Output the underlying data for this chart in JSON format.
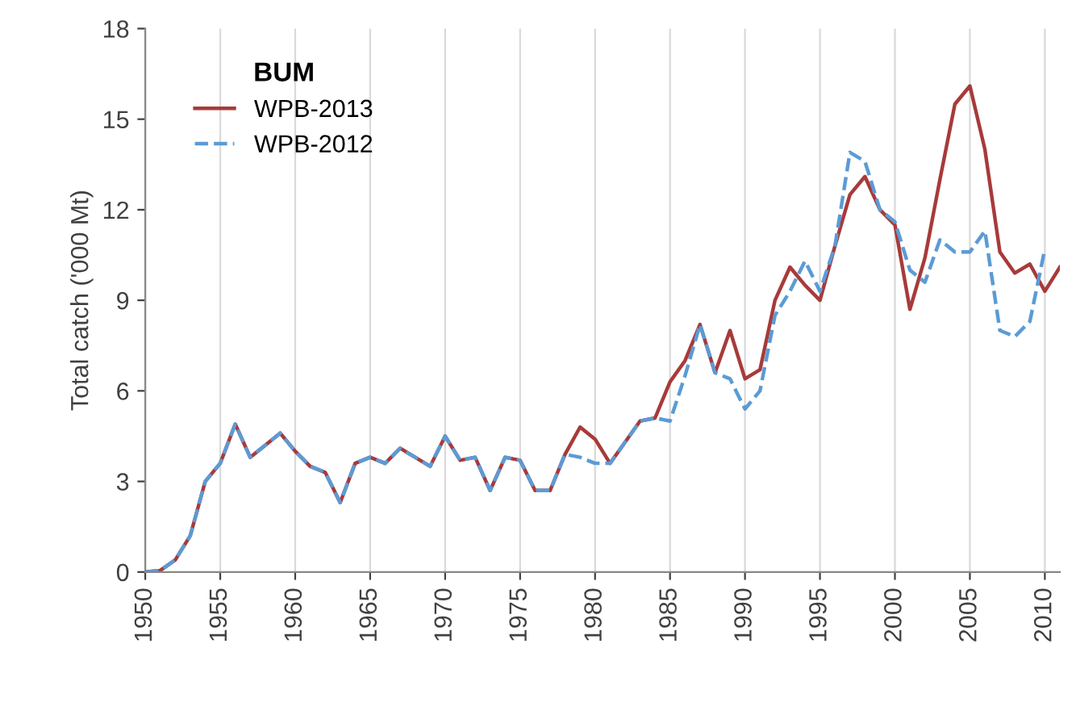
{
  "chart_data": {
    "type": "line",
    "legend_title": "BUM",
    "ylabel": "Total catch ('000 Mt)",
    "x": [
      1950,
      1951,
      1952,
      1953,
      1954,
      1955,
      1956,
      1957,
      1958,
      1959,
      1960,
      1961,
      1962,
      1963,
      1964,
      1965,
      1966,
      1967,
      1968,
      1969,
      1970,
      1971,
      1972,
      1973,
      1974,
      1975,
      1976,
      1977,
      1978,
      1979,
      1980,
      1981,
      1982,
      1983,
      1984,
      1985,
      1986,
      1987,
      1988,
      1989,
      1990,
      1991,
      1992,
      1993,
      1994,
      1995,
      1996,
      1997,
      1998,
      1999,
      2000,
      2001,
      2002,
      2003,
      2004,
      2005,
      2006,
      2007,
      2008,
      2009,
      2010,
      2011
    ],
    "series": [
      {
        "name": "WPB-2013",
        "color": "#a83a3a",
        "line_style": "solid",
        "values": [
          0,
          0.05,
          0.4,
          1.2,
          3.0,
          3.6,
          4.9,
          3.8,
          4.2,
          4.6,
          4.0,
          3.5,
          3.3,
          2.3,
          3.6,
          3.8,
          3.6,
          4.1,
          3.8,
          3.5,
          4.5,
          3.7,
          3.8,
          2.7,
          3.8,
          3.7,
          2.7,
          2.7,
          3.9,
          4.8,
          4.4,
          3.6,
          4.3,
          5.0,
          5.1,
          6.3,
          7.0,
          8.2,
          6.6,
          8.0,
          6.4,
          6.7,
          9.0,
          10.1,
          9.5,
          9.0,
          10.8,
          12.5,
          13.1,
          12.0,
          11.5,
          8.7,
          10.4,
          13.0,
          15.5,
          16.1,
          14.0,
          10.6,
          9.9,
          10.2,
          9.3,
          10.1
        ]
      },
      {
        "name": "WPB-2012",
        "color": "#5b9bd5",
        "line_style": "dashed",
        "values": [
          0,
          0.05,
          0.4,
          1.2,
          3.0,
          3.6,
          4.9,
          3.8,
          4.2,
          4.6,
          4.0,
          3.5,
          3.3,
          2.3,
          3.6,
          3.8,
          3.6,
          4.1,
          3.8,
          3.5,
          4.5,
          3.7,
          3.8,
          2.7,
          3.8,
          3.7,
          2.7,
          2.7,
          3.9,
          3.8,
          3.6,
          3.6,
          4.3,
          5.0,
          5.1,
          5.0,
          6.5,
          8.2,
          6.6,
          6.4,
          5.4,
          6.0,
          8.5,
          9.3,
          10.3,
          9.3,
          10.8,
          13.9,
          13.6,
          12.0,
          11.6,
          10.0,
          9.6,
          11.0,
          10.6,
          10.6,
          11.3,
          8.0,
          7.8,
          8.3,
          10.7,
          null
        ]
      }
    ],
    "xlim": [
      1950,
      2011
    ],
    "xticks": [
      1950,
      1955,
      1960,
      1965,
      1970,
      1975,
      1980,
      1985,
      1990,
      1995,
      2000,
      2005,
      2010
    ],
    "ylim": [
      0,
      18
    ],
    "yticks": [
      0,
      3,
      6,
      9,
      12,
      15,
      18
    ],
    "grid": "x",
    "legend": "top left"
  }
}
